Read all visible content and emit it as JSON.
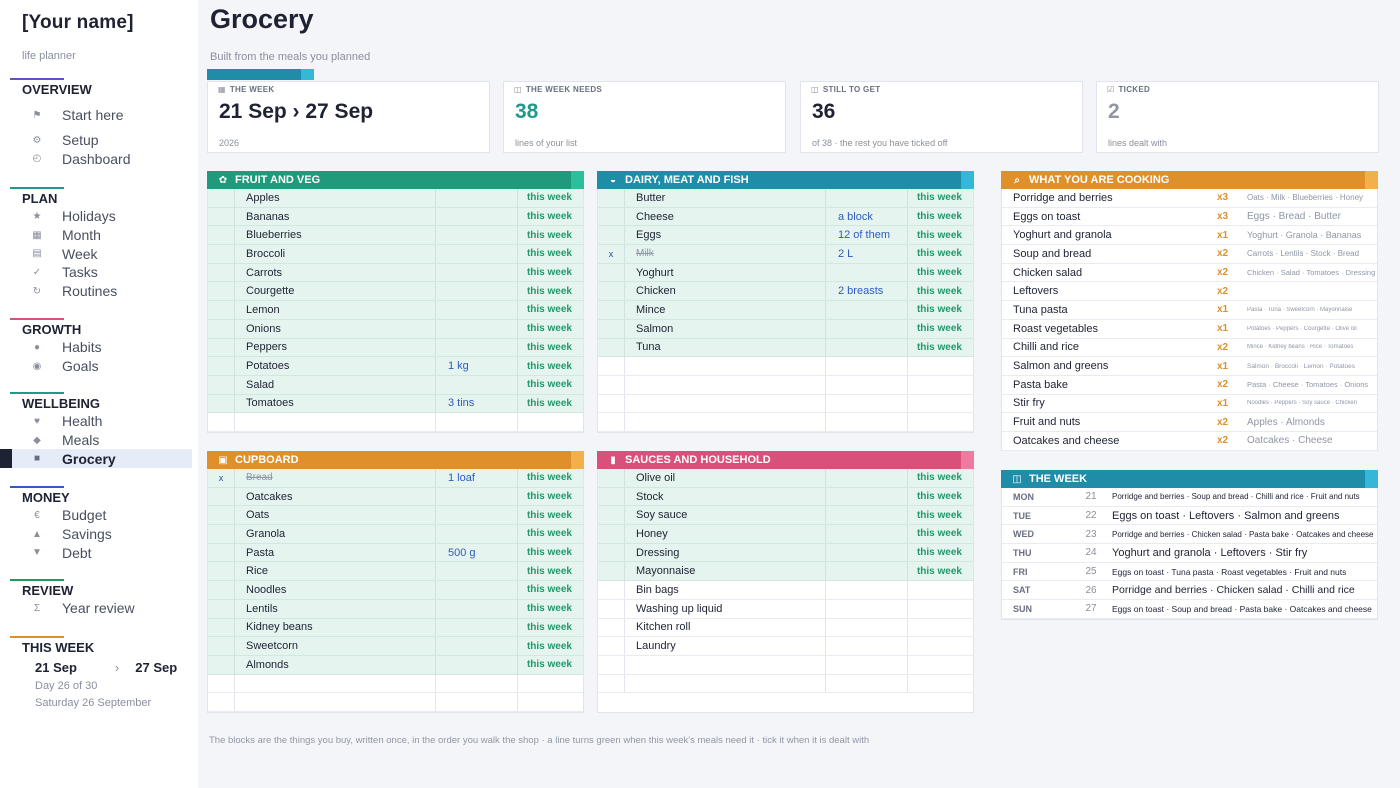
{
  "sidebar": {
    "name": "[Your name]",
    "subtitle": "life planner",
    "sections": [
      {
        "title": "OVERVIEW",
        "color": "#6a4ec0",
        "items": [
          {
            "label": "Start here",
            "icon": "flag-icon",
            "glyph": "⚑"
          },
          {
            "label": "Setup",
            "icon": "gear-icon",
            "glyph": "⚙"
          },
          {
            "label": "Dashboard",
            "icon": "gauge-icon",
            "glyph": "◴"
          }
        ]
      },
      {
        "title": "PLAN",
        "color": "#1f9a8a",
        "items": [
          {
            "label": "Holidays",
            "icon": "star-icon",
            "glyph": "★"
          },
          {
            "label": "Month",
            "icon": "calendar-grid-icon",
            "glyph": "▦"
          },
          {
            "label": "Week",
            "icon": "list-icon",
            "glyph": "▤"
          },
          {
            "label": "Tasks",
            "icon": "check-icon",
            "glyph": "✓"
          },
          {
            "label": "Routines",
            "icon": "refresh-icon",
            "glyph": "↻"
          }
        ]
      },
      {
        "title": "GROWTH",
        "color": "#d9507a",
        "items": [
          {
            "label": "Habits",
            "icon": "circle-icon",
            "glyph": "●"
          },
          {
            "label": "Goals",
            "icon": "target-icon",
            "glyph": "◉"
          }
        ]
      },
      {
        "title": "WELLBEING",
        "color": "#1f9a8a",
        "items": [
          {
            "label": "Health",
            "icon": "heart-icon",
            "glyph": "♥"
          },
          {
            "label": "Meals",
            "icon": "diamond-icon",
            "glyph": "◆"
          },
          {
            "label": "Grocery",
            "icon": "square-icon",
            "glyph": "■",
            "active": true
          }
        ]
      },
      {
        "title": "MONEY",
        "color": "#2f5bc0",
        "items": [
          {
            "label": "Budget",
            "icon": "euro-icon",
            "glyph": "€"
          },
          {
            "label": "Savings",
            "icon": "triangle-up-icon",
            "glyph": "▲"
          },
          {
            "label": "Debt",
            "icon": "triangle-down-icon",
            "glyph": "▼"
          }
        ]
      },
      {
        "title": "REVIEW",
        "color": "#1f9a5a",
        "items": [
          {
            "label": "Year review",
            "icon": "sigma-icon",
            "glyph": "Σ"
          }
        ]
      }
    ],
    "this_week": {
      "title": "THIS WEEK",
      "color": "#e0902a",
      "start": "21 Sep",
      "arrow": "›",
      "end": "27 Sep",
      "day": "Day 26 of 30",
      "date": "Saturday 26 September"
    }
  },
  "header": {
    "title": "Grocery",
    "subtitle": "Built from the meals you planned"
  },
  "cards": [
    {
      "label": "THE WEEK",
      "icon": "calendar-icon",
      "glyph": "▦",
      "big": "21 Sep  ›  27 Sep",
      "small": "2026",
      "color": "#1e2233"
    },
    {
      "label": "THE WEEK NEEDS",
      "icon": "basket-icon",
      "glyph": "◫",
      "big": "38",
      "small": "lines of your list",
      "color": "#1f9a8a"
    },
    {
      "label": "STILL TO GET",
      "icon": "cart-icon",
      "glyph": "◫",
      "big": "36",
      "small": "of 38  ·  the rest you have ticked off",
      "color": "#1e2233"
    },
    {
      "label": "TICKED",
      "icon": "check-box-icon",
      "glyph": "☑",
      "big": "2",
      "small": "lines dealt with",
      "color": "#9096a6"
    }
  ],
  "blocks": {
    "fruit": {
      "title": "FRUIT AND VEG",
      "icon": "sprout-icon",
      "glyph": "✿",
      "color": "#1f9a7a",
      "tip": "#2bbf9a",
      "rows": [
        {
          "tick": "",
          "item": "Apples",
          "qty": "",
          "status": "this week"
        },
        {
          "tick": "",
          "item": "Bananas",
          "qty": "",
          "status": "this week"
        },
        {
          "tick": "",
          "item": "Blueberries",
          "qty": "",
          "status": "this week"
        },
        {
          "tick": "",
          "item": "Broccoli",
          "qty": "",
          "status": "this week"
        },
        {
          "tick": "",
          "item": "Carrots",
          "qty": "",
          "status": "this week"
        },
        {
          "tick": "",
          "item": "Courgette",
          "qty": "",
          "status": "this week"
        },
        {
          "tick": "",
          "item": "Lemon",
          "qty": "",
          "status": "this week"
        },
        {
          "tick": "",
          "item": "Onions",
          "qty": "",
          "status": "this week"
        },
        {
          "tick": "",
          "item": "Peppers",
          "qty": "",
          "status": "this week"
        },
        {
          "tick": "",
          "item": "Potatoes",
          "qty": "1 kg",
          "status": "this week"
        },
        {
          "tick": "",
          "item": "Salad",
          "qty": "",
          "status": "this week"
        },
        {
          "tick": "",
          "item": "Tomatoes",
          "qty": "3 tins",
          "status": "this week"
        },
        {
          "tick": "",
          "item": "",
          "qty": "",
          "status": ""
        }
      ]
    },
    "dairy": {
      "title": "DAIRY, MEAT AND FISH",
      "icon": "cheese-icon",
      "glyph": "◒",
      "color": "#1f8ca8",
      "tip": "#35b8d8",
      "rows": [
        {
          "tick": "",
          "item": "Butter",
          "qty": "",
          "status": "this week"
        },
        {
          "tick": "",
          "item": "Cheese",
          "qty": "a block",
          "status": "this week"
        },
        {
          "tick": "",
          "item": "Eggs",
          "qty": "12 of them",
          "status": "this week"
        },
        {
          "tick": "x",
          "item": "Milk",
          "qty": "2 L",
          "status": "this week",
          "done": true
        },
        {
          "tick": "",
          "item": "Yoghurt",
          "qty": "",
          "status": "this week"
        },
        {
          "tick": "",
          "item": "Chicken",
          "qty": "2 breasts",
          "status": "this week"
        },
        {
          "tick": "",
          "item": "Mince",
          "qty": "",
          "status": "this week"
        },
        {
          "tick": "",
          "item": "Salmon",
          "qty": "",
          "status": "this week"
        },
        {
          "tick": "",
          "item": "Tuna",
          "qty": "",
          "status": "this week"
        },
        {
          "tick": "",
          "item": "",
          "qty": "",
          "status": ""
        },
        {
          "tick": "",
          "item": "",
          "qty": "",
          "status": ""
        },
        {
          "tick": "",
          "item": "",
          "qty": "",
          "status": ""
        },
        {
          "tick": "",
          "item": "",
          "qty": "",
          "status": ""
        }
      ]
    },
    "cupboard": {
      "title": "CUPBOARD",
      "icon": "jar-icon",
      "glyph": "▣",
      "color": "#e0902a",
      "tip": "#f2b04a",
      "rows": [
        {
          "tick": "x",
          "item": "Bread",
          "qty": "1 loaf",
          "status": "this week",
          "done": true
        },
        {
          "tick": "",
          "item": "Oatcakes",
          "qty": "",
          "status": "this week"
        },
        {
          "tick": "",
          "item": "Oats",
          "qty": "",
          "status": "this week"
        },
        {
          "tick": "",
          "item": "Granola",
          "qty": "",
          "status": "this week"
        },
        {
          "tick": "",
          "item": "Pasta",
          "qty": "500 g",
          "status": "this week"
        },
        {
          "tick": "",
          "item": "Rice",
          "qty": "",
          "status": "this week"
        },
        {
          "tick": "",
          "item": "Noodles",
          "qty": "",
          "status": "this week"
        },
        {
          "tick": "",
          "item": "Lentils",
          "qty": "",
          "status": "this week"
        },
        {
          "tick": "",
          "item": "Kidney beans",
          "qty": "",
          "status": "this week"
        },
        {
          "tick": "",
          "item": "Sweetcorn",
          "qty": "",
          "status": "this week"
        },
        {
          "tick": "",
          "item": "Almonds",
          "qty": "",
          "status": "this week"
        },
        {
          "tick": "",
          "item": "",
          "qty": "",
          "status": ""
        },
        {
          "tick": "",
          "item": "",
          "qty": "",
          "status": ""
        }
      ]
    },
    "sauces": {
      "title": "SAUCES AND HOUSEHOLD",
      "icon": "bottle-icon",
      "glyph": "▮",
      "color": "#d9507a",
      "tip": "#ef7aa0",
      "rows": [
        {
          "tick": "",
          "item": "Olive oil",
          "qty": "",
          "status": "this week"
        },
        {
          "tick": "",
          "item": "Stock",
          "qty": "",
          "status": "this week"
        },
        {
          "tick": "",
          "item": "Soy sauce",
          "qty": "",
          "status": "this week"
        },
        {
          "tick": "",
          "item": "Honey",
          "qty": "",
          "status": "this week"
        },
        {
          "tick": "",
          "item": "Dressing",
          "qty": "",
          "status": "this week"
        },
        {
          "tick": "",
          "item": "Mayonnaise",
          "qty": "",
          "status": "this week"
        },
        {
          "tick": "",
          "item": "Bin bags",
          "qty": "",
          "status": ""
        },
        {
          "tick": "",
          "item": "Washing up liquid",
          "qty": "",
          "status": ""
        },
        {
          "tick": "",
          "item": "Kitchen roll",
          "qty": "",
          "status": ""
        },
        {
          "tick": "",
          "item": "Laundry",
          "qty": "",
          "status": ""
        },
        {
          "tick": "",
          "item": "",
          "qty": "",
          "status": ""
        },
        {
          "tick": "",
          "item": "",
          "qty": "",
          "status": ""
        }
      ]
    },
    "cooking": {
      "title": "WHAT YOU ARE COOKING",
      "icon": "search-icon",
      "glyph": "⌕",
      "color": "#e0902a",
      "tip": "#f2b04a",
      "rows": [
        {
          "meal": "Porridge and berries",
          "count": "x3",
          "ing": "Oats · Milk · Blueberries · Honey",
          "size": "8px"
        },
        {
          "meal": "Eggs on toast",
          "count": "x3",
          "ing": "Eggs · Bread · Butter",
          "size": "10px"
        },
        {
          "meal": "Yoghurt and granola",
          "count": "x1",
          "ing": "Yoghurt · Granola · Bananas",
          "size": "9px"
        },
        {
          "meal": "Soup and bread",
          "count": "x2",
          "ing": "Carrots · Lentils · Stock · Bread",
          "size": "8px"
        },
        {
          "meal": "Chicken salad",
          "count": "x2",
          "ing": "Chicken · Salad · Tomatoes · Dressing",
          "size": "7.5px"
        },
        {
          "meal": "Leftovers",
          "count": "x2",
          "ing": "",
          "size": "8px"
        },
        {
          "meal": "Tuna pasta",
          "count": "x1",
          "ing": "Pasta · Tuna · Sweetcorn · Mayonnaise",
          "size": "6px"
        },
        {
          "meal": "Roast vegetables",
          "count": "x1",
          "ing": "Potatoes · Peppers · Courgette · Olive oil",
          "size": "6px"
        },
        {
          "meal": "Chilli and rice",
          "count": "x2",
          "ing": "Mince · Kidney beans · Rice · Tomatoes",
          "size": "6px"
        },
        {
          "meal": "Salmon and greens",
          "count": "x1",
          "ing": "Salmon · Broccoli · Lemon · Potatoes",
          "size": "6.5px"
        },
        {
          "meal": "Pasta bake",
          "count": "x2",
          "ing": "Pasta · Cheese · Tomatoes · Onions",
          "size": "7.5px"
        },
        {
          "meal": "Stir fry",
          "count": "x1",
          "ing": "Noodles · Peppers · Soy sauce · Chicken",
          "size": "6px"
        },
        {
          "meal": "Fruit and nuts",
          "count": "x2",
          "ing": "Apples · Almonds",
          "size": "10px"
        },
        {
          "meal": "Oatcakes and cheese",
          "count": "x2",
          "ing": "Oatcakes · Cheese",
          "size": "10px"
        }
      ]
    },
    "week": {
      "title": "THE WEEK",
      "icon": "cart-icon",
      "glyph": "◫",
      "color": "#1f8ca8",
      "tip": "#35b8d8",
      "rows": [
        {
          "day": "MON",
          "date": "21",
          "meals": "Porridge and berries · Soup and bread · Chilli and rice · Fruit and nuts",
          "size": "8px"
        },
        {
          "day": "TUE",
          "date": "22",
          "meals": "Eggs on toast · Leftovers · Salmon and greens",
          "size": "11px"
        },
        {
          "day": "WED",
          "date": "23",
          "meals": "Porridge and berries · Chicken salad · Pasta bake · Oatcakes and cheese",
          "size": "8px"
        },
        {
          "day": "THU",
          "date": "24",
          "meals": "Yoghurt and granola · Leftovers · Stir fry",
          "size": "11px"
        },
        {
          "day": "FRI",
          "date": "25",
          "meals": "Eggs on toast · Tuna pasta · Roast vegetables · Fruit and nuts",
          "size": "8.5px"
        },
        {
          "day": "SAT",
          "date": "26",
          "meals": "Porridge and berries · Chicken salad · Chilli and rice",
          "size": "10.5px"
        },
        {
          "day": "SUN",
          "date": "27",
          "meals": "Eggs on toast · Soup and bread · Pasta bake · Oatcakes and cheese",
          "size": "8.5px"
        }
      ]
    }
  },
  "footer": "The blocks are the things you buy, written once, in the order you walk the shop  ·  a line turns green when this week's meals need it  ·  tick it when it is dealt with"
}
